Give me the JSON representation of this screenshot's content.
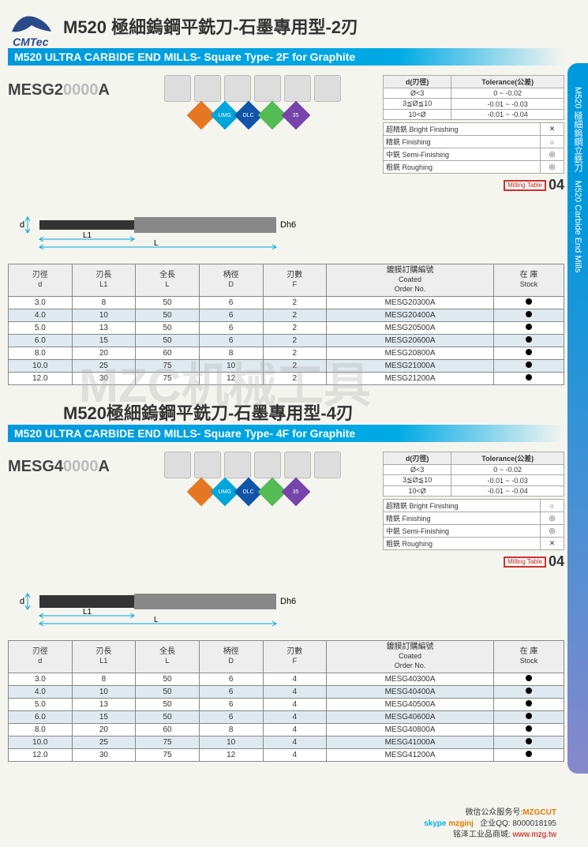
{
  "logo_text": "CMTec",
  "section1": {
    "title_cn": "M520 極細鎢鋼平銑刀-石墨專用型-2刃",
    "title_en": "M520 ULTRA CARBIDE END MILLS- Square Type- 2F for Graphite",
    "model_prefix": "MESG2",
    "model_mid": "0000",
    "model_suffix": "A",
    "milling_num": "04",
    "diamonds": [
      {
        "color": "#e67722",
        "label": ""
      },
      {
        "color": "#00a5d9",
        "label": "UMG"
      },
      {
        "color": "#1155aa",
        "label": "DLC"
      },
      {
        "color": "#55bb55",
        "label": ""
      },
      {
        "color": "#7744aa",
        "label": "35"
      }
    ],
    "tolerance": {
      "header1": "d(刃徑)",
      "header2": "Tolerance(公差)",
      "rows": [
        [
          "Ø<3",
          "0 ~ -0.02"
        ],
        [
          "3≦Ø≦10",
          "-0.01 ~ -0.03"
        ],
        [
          "10<Ø",
          "-0.01 ~ -0.04"
        ]
      ]
    },
    "finish": [
      [
        "超精銑 Bright Finishing",
        "✕"
      ],
      [
        "精銑 Finishing",
        "○"
      ],
      [
        "中銑 Semi-Finishing",
        "◎"
      ],
      [
        "粗銑 Roughing",
        "◎"
      ]
    ],
    "table": {
      "headers": [
        {
          "cn": "刃徑",
          "en": "d"
        },
        {
          "cn": "刃長",
          "en": "L1"
        },
        {
          "cn": "全長",
          "en": "L"
        },
        {
          "cn": "柄徑",
          "en": "D"
        },
        {
          "cn": "刃數",
          "en": "F"
        },
        {
          "cn": "鍍膜訂購編號",
          "en": "Coated\nOrder No."
        },
        {
          "cn": "在 庫",
          "en": "Stock"
        }
      ],
      "rows": [
        [
          "3.0",
          "8",
          "50",
          "6",
          "2",
          "MESG20300A",
          "●"
        ],
        [
          "4.0",
          "10",
          "50",
          "6",
          "2",
          "MESG20400A",
          "●"
        ],
        [
          "5.0",
          "13",
          "50",
          "6",
          "2",
          "MESG20500A",
          "●"
        ],
        [
          "6.0",
          "15",
          "50",
          "6",
          "2",
          "MESG20600A",
          "●"
        ],
        [
          "8.0",
          "20",
          "60",
          "8",
          "2",
          "MESG20800A",
          "●"
        ],
        [
          "10.0",
          "25",
          "75",
          "10",
          "2",
          "MESG21000A",
          "●"
        ],
        [
          "12.0",
          "30",
          "75",
          "12",
          "2",
          "MESG21200A",
          "●"
        ]
      ]
    }
  },
  "section2": {
    "title_cn": "M520極細鎢鋼平銑刀-石墨專用型-4刃",
    "title_en": "M520 ULTRA CARBIDE END MILLS- Square Type- 4F for Graphite",
    "model_prefix": "MESG4",
    "model_mid": "0000",
    "model_suffix": "A",
    "milling_num": "04",
    "diamonds": [
      {
        "color": "#e67722",
        "label": ""
      },
      {
        "color": "#00a5d9",
        "label": "UMG"
      },
      {
        "color": "#1155aa",
        "label": "DLC"
      },
      {
        "color": "#55bb55",
        "label": ""
      },
      {
        "color": "#7744aa",
        "label": "35"
      }
    ],
    "tolerance": {
      "header1": "d(刃徑)",
      "header2": "Tolerance(公差)",
      "rows": [
        [
          "Ø<3",
          "0 ~ -0.02"
        ],
        [
          "3≦Ø≦10",
          "-0.01 ~ -0.03"
        ],
        [
          "10<Ø",
          "-0.01 ~ -0.04"
        ]
      ]
    },
    "finish": [
      [
        "超精銑 Bright Finishing",
        "○"
      ],
      [
        "精銑 Finishing",
        "◎"
      ],
      [
        "中銑 Semi-Finishing",
        "◎"
      ],
      [
        "粗銑 Roughing",
        "✕"
      ]
    ],
    "table": {
      "headers": [
        {
          "cn": "刃徑",
          "en": "d"
        },
        {
          "cn": "刃長",
          "en": "L1"
        },
        {
          "cn": "全長",
          "en": "L"
        },
        {
          "cn": "柄徑",
          "en": "D"
        },
        {
          "cn": "刃數",
          "en": "F"
        },
        {
          "cn": "鍍膜訂購編號",
          "en": "Coated\nOrder No."
        },
        {
          "cn": "在 庫",
          "en": "Stock"
        }
      ],
      "rows": [
        [
          "3.0",
          "8",
          "50",
          "6",
          "4",
          "MESG40300A",
          "●"
        ],
        [
          "4.0",
          "10",
          "50",
          "6",
          "4",
          "MESG40400A",
          "●"
        ],
        [
          "5.0",
          "13",
          "50",
          "6",
          "4",
          "MESG40500A",
          "●"
        ],
        [
          "6.0",
          "15",
          "50",
          "6",
          "4",
          "MESG40600A",
          "●"
        ],
        [
          "8.0",
          "20",
          "60",
          "8",
          "4",
          "MESG40800A",
          "●"
        ],
        [
          "10.0",
          "25",
          "75",
          "10",
          "4",
          "MESG41000A",
          "●"
        ],
        [
          "12.0",
          "30",
          "75",
          "12",
          "4",
          "MESG41200A",
          "●"
        ]
      ]
    }
  },
  "side_text": "M520 極細鎢鋼立銑刀　M520 Carbide End Mills",
  "watermark": "MZC机械工具",
  "diagram_labels": {
    "d": "d",
    "L1": "L1",
    "L": "L",
    "Dh6": "Dh6"
  },
  "milling_label": "Milling\nTable",
  "footer": {
    "line1_label": "微信公众服务号:",
    "line1_val": "MZGCUT",
    "line2_label": "skype",
    "line2_val": "mzginj",
    "line2_label2": "企业QQ:",
    "line2_val2": "8000018195",
    "line3_label": "铭泽工业品商城:",
    "line3_val": "www.mzg.tw"
  }
}
